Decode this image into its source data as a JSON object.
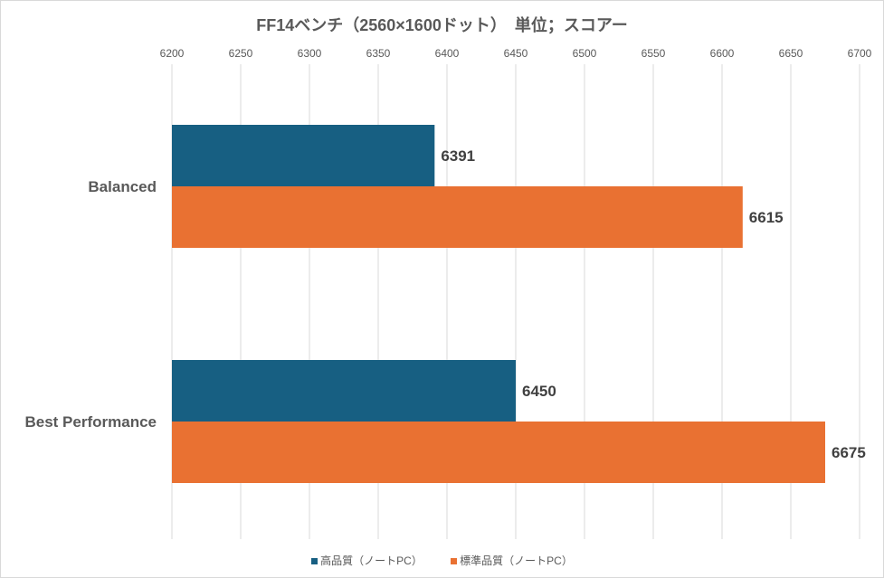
{
  "chart_data": {
    "type": "bar",
    "orientation": "horizontal",
    "title": "FF14ベンチ（2560×1600ドット）　単位；スコアー",
    "categories": [
      "Balanced",
      "Best Performance"
    ],
    "series": [
      {
        "name": "高品質（ノートPC）",
        "color": "#175F82",
        "values": [
          6391,
          6450
        ]
      },
      {
        "name": "標準品質（ノートPC）",
        "color": "#E97132",
        "values": [
          6615,
          6675
        ]
      }
    ],
    "xlim": [
      6200,
      6700
    ],
    "xticks": [
      6200,
      6250,
      6300,
      6350,
      6400,
      6450,
      6500,
      6550,
      6600,
      6650,
      6700
    ],
    "xaxis_position": "top",
    "grid": true,
    "legend": "bottom",
    "data_labels": true
  }
}
